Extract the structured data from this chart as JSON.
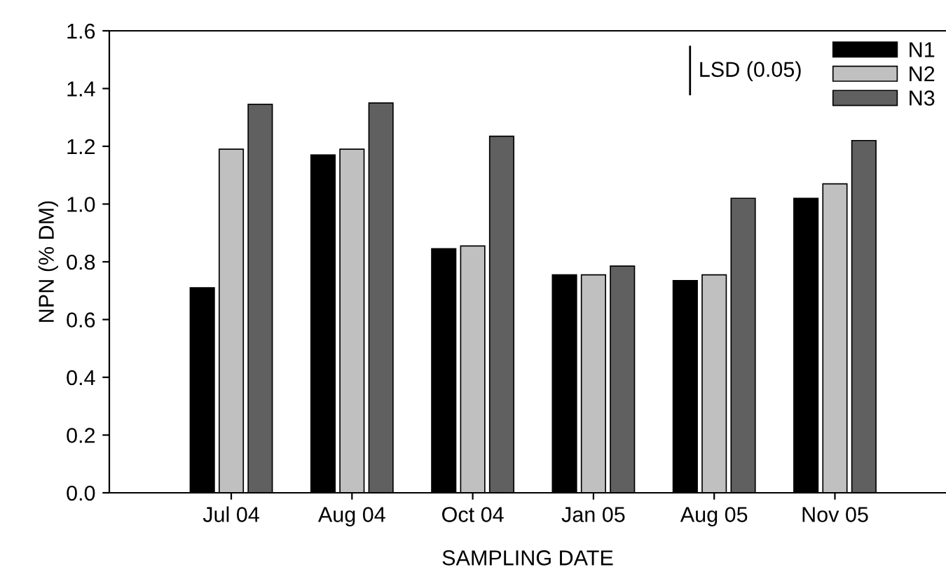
{
  "chart_data": {
    "type": "bar",
    "xlabel": "SAMPLING DATE",
    "ylabel": "NPN (% DM)",
    "categories": [
      "Jul 04",
      "Aug 04",
      "Oct 04",
      "Jan 05",
      "Aug 05",
      "Nov 05"
    ],
    "series": [
      {
        "name": "N1",
        "color": "#000000",
        "values": [
          0.71,
          1.17,
          0.845,
          0.755,
          0.735,
          1.02
        ]
      },
      {
        "name": "N2",
        "color": "#c0c0c0",
        "values": [
          1.19,
          1.19,
          0.855,
          0.755,
          0.755,
          1.07
        ]
      },
      {
        "name": "N3",
        "color": "#606060",
        "values": [
          1.345,
          1.35,
          1.235,
          0.785,
          1.02,
          1.22
        ]
      }
    ],
    "ylim": [
      0,
      1.6
    ],
    "yticks": [
      {
        "value": 0,
        "label": "0.0"
      },
      {
        "value": 0.2,
        "label": "0.2"
      },
      {
        "value": 0.4,
        "label": "0.4"
      },
      {
        "value": 0.6,
        "label": "0.6"
      },
      {
        "value": 0.8,
        "label": "0.8"
      },
      {
        "value": 1.0,
        "label": "1.0"
      },
      {
        "value": 1.2,
        "label": "1.2"
      },
      {
        "value": 1.4,
        "label": "1.4"
      },
      {
        "value": 1.6,
        "label": "1.6"
      }
    ],
    "annotations": [
      "LSD (0.05)"
    ],
    "legend": "top right",
    "grid": false
  }
}
